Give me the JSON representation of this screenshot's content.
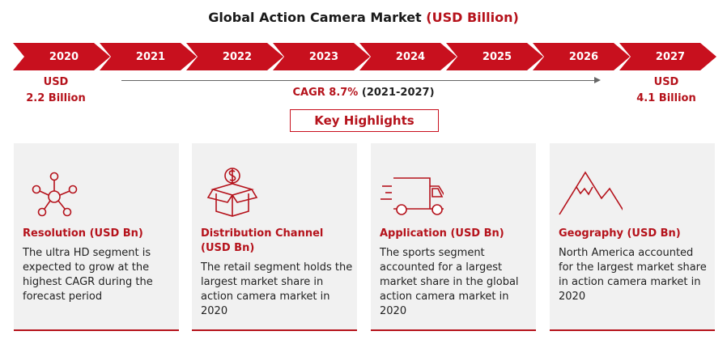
{
  "title": {
    "main": "Global Action Camera Market",
    "accent": "(USD Billion)"
  },
  "timeline": {
    "years": [
      "2020",
      "2021",
      "2022",
      "2023",
      "2024",
      "2025",
      "2026",
      "2027"
    ]
  },
  "start_value": {
    "line1": "USD",
    "line2": "2.2 Billion"
  },
  "end_value": {
    "line1": "USD",
    "line2": "4.1 Billion"
  },
  "cagr": {
    "label": "CAGR 8.7%",
    "period": "(2021-2027)"
  },
  "key_highlights": "Key Highlights",
  "cards": [
    {
      "icon": "network-nodes-icon",
      "title": "Resolution (USD Bn)",
      "text": "The ultra HD segment is expected to grow at the highest CAGR during the forecast period"
    },
    {
      "icon": "dollar-box-icon",
      "title": "Distribution Channel (USD Bn)",
      "text": "The retail segment holds the largest market share in action camera market in 2020"
    },
    {
      "icon": "delivery-truck-icon",
      "title": "Application (USD Bn)",
      "text": "The sports segment accounted for a largest market share in the global action camera market in 2020"
    },
    {
      "icon": "mountain-icon",
      "title": "Geography (USD Bn)",
      "text": "North America accounted for the largest market share in action camera market in 2020"
    }
  ],
  "colors": {
    "accent": "#c8101e",
    "card_bg": "#f1f1f1"
  }
}
